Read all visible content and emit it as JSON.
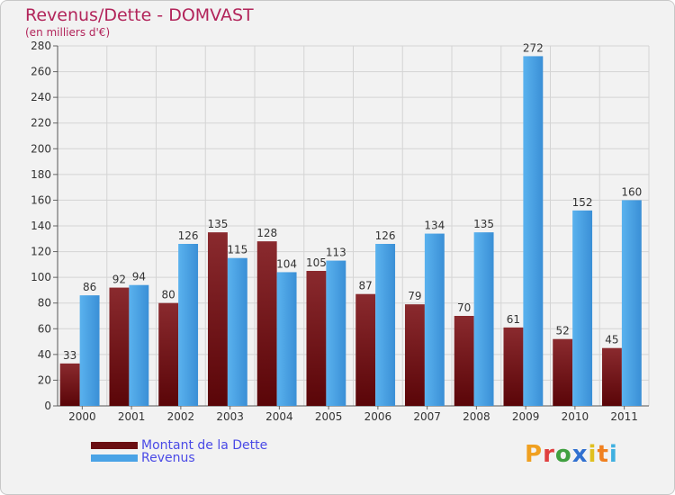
{
  "header": {
    "title": "Revenus/Dette - DOMVAST",
    "subtitle": "(en milliers d'€)"
  },
  "chart_data": {
    "type": "bar",
    "categories": [
      "2000",
      "2001",
      "2002",
      "2003",
      "2004",
      "2005",
      "2006",
      "2007",
      "2008",
      "2009",
      "2010",
      "2011"
    ],
    "series": [
      {
        "name": "Montant de la Dette",
        "values": [
          33,
          92,
          80,
          135,
          128,
          105,
          87,
          79,
          70,
          61,
          52,
          45
        ],
        "color": "#7a1216"
      },
      {
        "name": "Revenus",
        "values": [
          86,
          94,
          126,
          115,
          104,
          113,
          126,
          134,
          135,
          272,
          152,
          160
        ],
        "color": "#4aa3e6"
      }
    ],
    "title": "Revenus/Dette - DOMVAST",
    "ylabel": "(en milliers d'€)",
    "ylim": [
      0,
      280
    ],
    "yticks": [
      0,
      20,
      40,
      60,
      80,
      100,
      120,
      140,
      160,
      180,
      200,
      220,
      240,
      260,
      280
    ],
    "grid": true,
    "legend": "bottom-left"
  },
  "legend": {
    "items": [
      {
        "label": "Montant de la Dette",
        "color": "#7a1216"
      },
      {
        "label": "Revenus",
        "color": "#4aa3e6"
      }
    ]
  },
  "logo": {
    "text": "Proxiti",
    "colors": [
      "#f0a020",
      "#e04040",
      "#40a040",
      "#3070d0",
      "#e0c020",
      "#f08020",
      "#40b0e0"
    ]
  }
}
